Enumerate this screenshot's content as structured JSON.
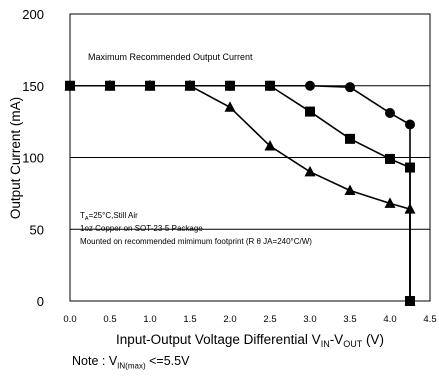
{
  "chart_data": {
    "type": "line",
    "xlabel": {
      "prefix": "Input-Output Voltage Differential V",
      "sub1": "IN",
      "mid": "-V",
      "sub2": "OUT",
      "suffix": " (V)"
    },
    "ylabel": "Output Current (mA)",
    "xlim": [
      0,
      4.5
    ],
    "ylim": [
      0,
      200
    ],
    "x_ticks": [
      "0.0",
      "0.5",
      "1.0",
      "1.5",
      "2.0",
      "2.5",
      "3.0",
      "3.5",
      "4.0",
      "4.5"
    ],
    "y_ticks": [
      "0",
      "50",
      "100",
      "150",
      "200"
    ],
    "grid": "horizontal",
    "series": [
      {
        "marker": "circle",
        "points": [
          [
            0,
            150
          ],
          [
            0.5,
            150
          ],
          [
            1.0,
            150
          ],
          [
            1.5,
            150
          ],
          [
            2.0,
            150
          ],
          [
            2.5,
            150
          ],
          [
            3.0,
            150
          ],
          [
            3.5,
            149
          ],
          [
            4.0,
            131
          ],
          [
            4.25,
            123
          ],
          [
            4.25,
            0
          ]
        ]
      },
      {
        "marker": "square",
        "points": [
          [
            0,
            150
          ],
          [
            0.5,
            150
          ],
          [
            1.0,
            150
          ],
          [
            1.5,
            150
          ],
          [
            2.0,
            150
          ],
          [
            2.5,
            150
          ],
          [
            3.0,
            132
          ],
          [
            3.5,
            113
          ],
          [
            4.0,
            99
          ],
          [
            4.25,
            93
          ],
          [
            4.25,
            0
          ]
        ]
      },
      {
        "marker": "triangle",
        "points": [
          [
            0,
            150
          ],
          [
            0.5,
            150
          ],
          [
            1.0,
            150
          ],
          [
            1.5,
            150
          ],
          [
            2.0,
            135
          ],
          [
            2.5,
            108
          ],
          [
            3.0,
            90
          ],
          [
            3.5,
            77
          ],
          [
            4.0,
            68
          ],
          [
            4.25,
            64
          ],
          [
            4.25,
            0
          ]
        ]
      }
    ],
    "annotations": {
      "title_inside": "Maximum Recommended Output Current",
      "cond_t_prefix": "T",
      "cond_t_sub": "A",
      "cond_t_suffix": "=25°C,Still Air",
      "cond_copper": "1oz Copper on SOT-23-5 Package",
      "cond_mount": "Mounted on recommended mimimum footprint  (R θ JA=240°C/W)"
    }
  },
  "note": {
    "prefix": "Note : V",
    "sub": "IN(max)",
    "suffix": " <=5.5V"
  }
}
